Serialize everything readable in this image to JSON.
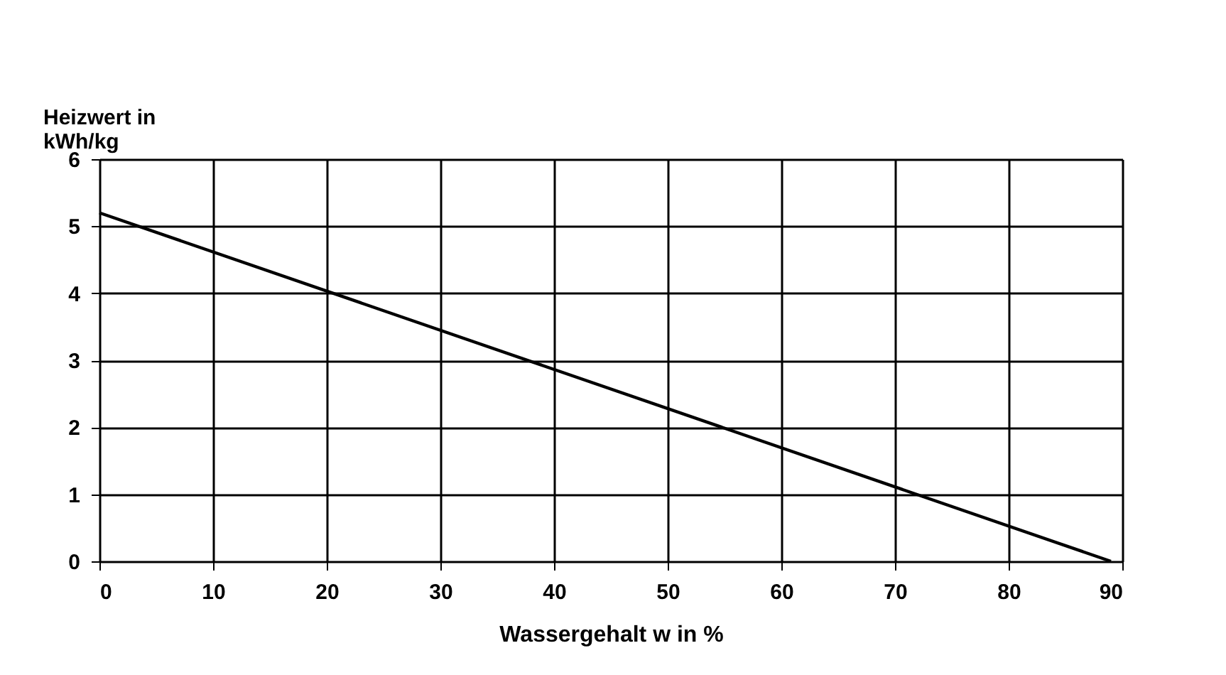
{
  "chart_data": {
    "type": "line",
    "xlabel": "Wassergehalt w in %",
    "ylabel": "Heizwert in\nkWh/kg",
    "x": [
      0,
      89
    ],
    "series": [
      {
        "color": "#000000",
        "values": [
          5.2,
          0
        ]
      }
    ],
    "xlim": [
      0,
      90
    ],
    "xticks": [
      0,
      10,
      20,
      30,
      40,
      50,
      60,
      70,
      80,
      90
    ],
    "ylim": [
      0,
      6
    ],
    "yticks": [
      0,
      1,
      2,
      3,
      4,
      5,
      6
    ],
    "grid": true,
    "marker": "none",
    "line_style": "solid"
  }
}
